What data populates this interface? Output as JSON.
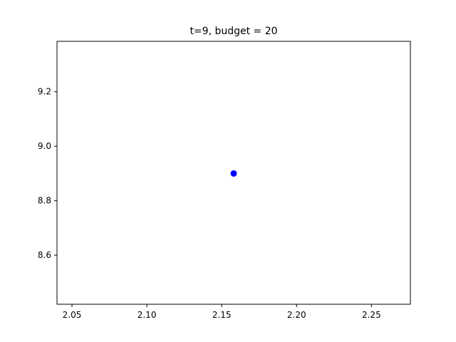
{
  "chart_data": {
    "type": "scatter",
    "title": "t=9, budget = 20",
    "xlabel": "",
    "ylabel": "",
    "xlim": [
      2.04,
      2.276
    ],
    "ylim": [
      8.42,
      9.385
    ],
    "x_ticks": [
      "2.05",
      "2.10",
      "2.15",
      "2.20",
      "2.25"
    ],
    "x_tick_values": [
      2.05,
      2.1,
      2.15,
      2.2,
      2.25
    ],
    "y_ticks": [
      "8.6",
      "8.8",
      "9.0",
      "9.2"
    ],
    "y_tick_values": [
      8.6,
      8.8,
      9.0,
      9.2
    ],
    "grid": false,
    "series": [
      {
        "points": [
          {
            "x": 2.158,
            "y": 8.9
          }
        ],
        "color": "#0000ff"
      }
    ]
  }
}
